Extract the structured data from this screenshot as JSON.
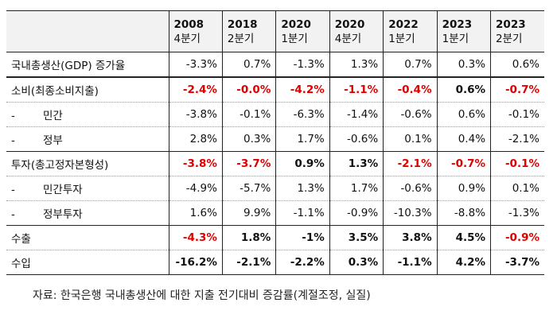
{
  "headers": [
    {
      "line1": "2008",
      "line2": "4분기"
    },
    {
      "line1": "2018",
      "line2": "2분기"
    },
    {
      "line1": "2020",
      "line2": "1분기"
    },
    {
      "line1": "2020",
      "line2": "4분기"
    },
    {
      "line1": "2022",
      "line2": "1분기"
    },
    {
      "line1": "2023",
      "line2": "1분기"
    },
    {
      "line1": "2023",
      "line2": "2분기"
    }
  ],
  "rows": [
    {
      "label": "국내총생산(GDP) 증가율",
      "values": [
        "-3.3%",
        "0.7%",
        "-1.3%",
        "1.3%",
        "0.7%",
        "0.3%",
        "0.6%"
      ]
    },
    {
      "label": "소비(최종소비지출)",
      "values": [
        "-2.4%",
        "-0.0%",
        "-4.2%",
        "-1.1%",
        "-0.4%",
        "0.6%",
        "-0.7%"
      ]
    },
    {
      "dash": "-",
      "label": "민간",
      "values": [
        "-3.8%",
        "-0.1%",
        "-6.3%",
        "-1.4%",
        "-0.6%",
        "0.6%",
        "-0.1%"
      ]
    },
    {
      "dash": "-",
      "label": "정부",
      "values": [
        "2.8%",
        "0.3%",
        "1.7%",
        "-0.6%",
        "0.1%",
        "0.4%",
        "-2.1%"
      ]
    },
    {
      "label": "투자(총고정자본형성)",
      "values": [
        "-3.8%",
        "-3.7%",
        "0.9%",
        "1.3%",
        "-2.1%",
        "-0.7%",
        "-0.1%"
      ]
    },
    {
      "dash": "-",
      "label": "민간투자",
      "values": [
        "-4.9%",
        "-5.7%",
        "1.3%",
        "1.7%",
        "-0.6%",
        "0.9%",
        "0.1%"
      ]
    },
    {
      "dash": "-",
      "label": "정부투자",
      "values": [
        "1.6%",
        "9.9%",
        "-1.1%",
        "-0.9%",
        "-10.3%",
        "-8.8%",
        "-1.3%"
      ]
    },
    {
      "label": "수출",
      "values": [
        "-4.3%",
        "1.8%",
        "-1%",
        "3.5%",
        "3.8%",
        "4.5%",
        "-0.9%"
      ]
    },
    {
      "label": "수입",
      "values": [
        "-16.2%",
        "-2.1%",
        "-2.2%",
        "0.3%",
        "-1.1%",
        "4.2%",
        "-3.7%"
      ]
    }
  ],
  "source": "자료: 한국은행 국내총생산에 대한 지출 전기대비 증감률(계절조정, 실질)",
  "colors": {
    "negative_highlight": "#e00000",
    "header_bg": "#f2f2f2"
  }
}
